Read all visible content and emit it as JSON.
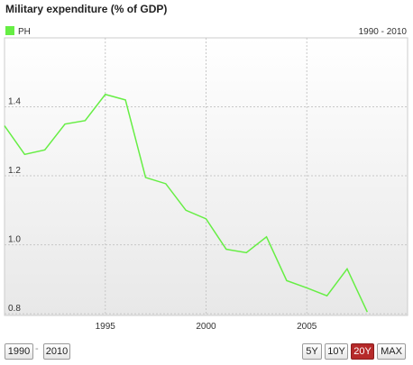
{
  "chart_data": {
    "type": "line",
    "title": "Military expenditure (% of GDP)",
    "range_label": "1990 - 2010",
    "x": [
      1990,
      1991,
      1992,
      1993,
      1994,
      1995,
      1996,
      1997,
      1998,
      1999,
      2000,
      2001,
      2002,
      2003,
      2004,
      2005,
      2006,
      2007,
      2008
    ],
    "series": [
      {
        "name": "PH",
        "color": "#66ee44",
        "values": [
          1.345,
          1.262,
          1.275,
          1.35,
          1.36,
          1.436,
          1.42,
          1.195,
          1.177,
          1.1,
          1.075,
          0.987,
          0.977,
          1.023,
          0.896,
          0.875,
          0.852,
          0.93,
          0.805
        ]
      }
    ],
    "xlim": [
      1990,
      2010
    ],
    "xticks": [
      1995,
      2000,
      2005
    ],
    "ylim": [
      0.795,
      1.6
    ],
    "yticks": [
      0.8,
      {
        "value": 1.0,
        "label": "1.0"
      },
      1.2,
      1.4
    ],
    "grid": true
  },
  "controls": {
    "from": "1990",
    "separator": "-",
    "to": "2010",
    "buttons": [
      "5Y",
      "10Y",
      "20Y",
      "MAX"
    ],
    "active": "20Y"
  }
}
